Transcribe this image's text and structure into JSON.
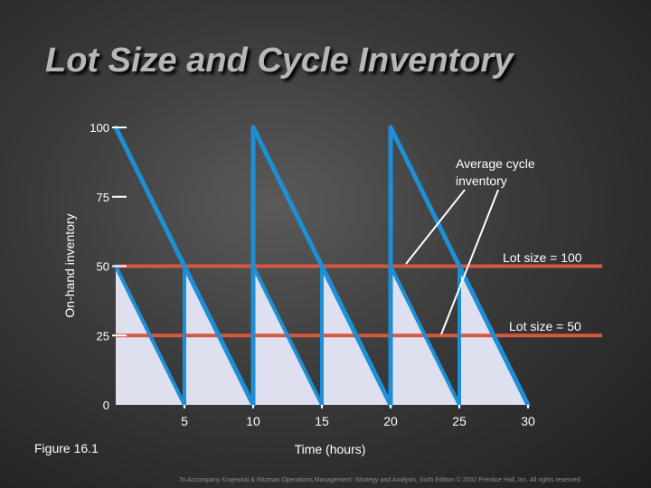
{
  "title": "Lot Size and Cycle Inventory",
  "figure_label": "Figure 16.1",
  "footer": "To Accompany Krajewski & Ritzman Operations Management: Strategy and Analysis, Sixth Edition © 2002 Prentice Hall, Inc. All rights reserved.",
  "colors": {
    "sawtooth_line": "#1c8fd6",
    "reference_line": "#d8573f",
    "shaded_area": "#dfe0ef",
    "axis": "#ffffff"
  },
  "chart_data": {
    "type": "line",
    "title": "Lot Size and Cycle Inventory",
    "xlabel": "Time (hours)",
    "ylabel": "On-hand inventory",
    "xlim": [
      0,
      30
    ],
    "ylim": [
      0,
      100
    ],
    "x_ticks": [
      5,
      10,
      15,
      20,
      25,
      30
    ],
    "y_ticks": [
      0,
      25,
      50,
      75,
      100
    ],
    "series": [
      {
        "name": "Lot size = 100",
        "points": [
          [
            0,
            100
          ],
          [
            10,
            0
          ],
          [
            10,
            100
          ],
          [
            20,
            0
          ],
          [
            20,
            100
          ],
          [
            30,
            0
          ]
        ]
      },
      {
        "name": "Lot size = 50",
        "points": [
          [
            0,
            50
          ],
          [
            5,
            0
          ],
          [
            5,
            50
          ],
          [
            10,
            0
          ],
          [
            10,
            50
          ],
          [
            15,
            0
          ],
          [
            15,
            50
          ],
          [
            20,
            0
          ],
          [
            20,
            50
          ],
          [
            25,
            0
          ],
          [
            25,
            50
          ],
          [
            30,
            0
          ]
        ]
      }
    ],
    "reference_lines": [
      {
        "y": 50,
        "label": "Lot size = 100"
      },
      {
        "y": 25,
        "label": "Lot size = 50"
      }
    ],
    "annotations": [
      {
        "text_lines": [
          "Average cycle",
          "inventory"
        ]
      }
    ],
    "grid": false
  }
}
